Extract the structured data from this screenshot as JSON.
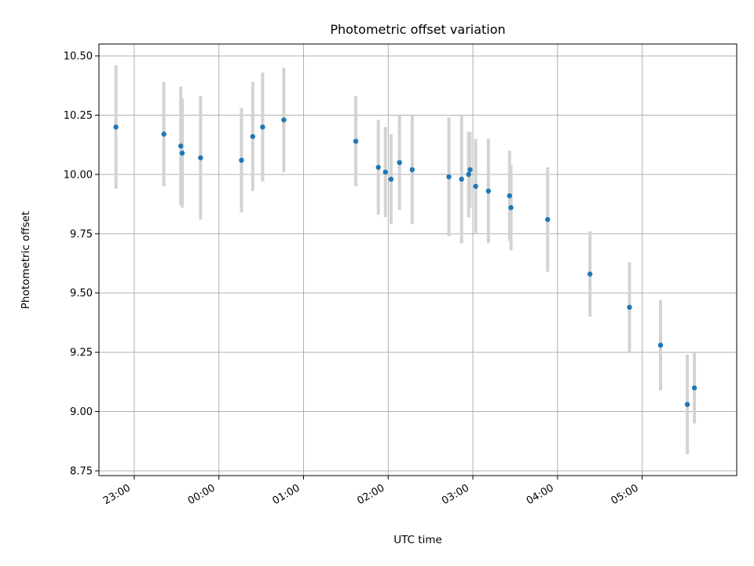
{
  "chart_data": {
    "type": "scatter",
    "title": "Photometric offset variation",
    "xlabel": "UTC time",
    "ylabel": "Photometric offset",
    "x_unit": "UTC hours (night spanning midnight)",
    "xlim": [
      "22:35",
      "06:07"
    ],
    "ylim": [
      8.73,
      10.55
    ],
    "grid": true,
    "x_ticks": [
      "23:00",
      "00:00",
      "01:00",
      "02:00",
      "03:00",
      "04:00",
      "05:00"
    ],
    "y_ticks": [
      "8.75",
      "9.00",
      "9.25",
      "9.50",
      "9.75",
      "10.00",
      "10.25",
      "10.50"
    ],
    "colors": {
      "points": "#1f77b4",
      "errorbars": "#d3d3d3",
      "grid": "#b0b0b0"
    },
    "points": [
      {
        "x": "22:47",
        "y": 10.2,
        "err": 0.26
      },
      {
        "x": "23:21",
        "y": 10.17,
        "err": 0.22
      },
      {
        "x": "23:33",
        "y": 10.12,
        "err": 0.25
      },
      {
        "x": "23:34",
        "y": 10.09,
        "err": 0.23
      },
      {
        "x": "23:47",
        "y": 10.07,
        "err": 0.26
      },
      {
        "x": "00:16",
        "y": 10.06,
        "err": 0.22
      },
      {
        "x": "00:24",
        "y": 10.16,
        "err": 0.23
      },
      {
        "x": "00:31",
        "y": 10.2,
        "err": 0.23
      },
      {
        "x": "00:46",
        "y": 10.23,
        "err": 0.22
      },
      {
        "x": "01:37",
        "y": 10.14,
        "err": 0.19
      },
      {
        "x": "01:53",
        "y": 10.03,
        "err": 0.2
      },
      {
        "x": "01:58",
        "y": 10.01,
        "err": 0.19
      },
      {
        "x": "02:02",
        "y": 9.98,
        "err": 0.19
      },
      {
        "x": "02:08",
        "y": 10.05,
        "err": 0.2
      },
      {
        "x": "02:17",
        "y": 10.02,
        "err": 0.23
      },
      {
        "x": "02:43",
        "y": 9.99,
        "err": 0.25
      },
      {
        "x": "02:52",
        "y": 9.98,
        "err": 0.27
      },
      {
        "x": "02:57",
        "y": 10.0,
        "err": 0.18
      },
      {
        "x": "02:58",
        "y": 10.02,
        "err": 0.16
      },
      {
        "x": "03:02",
        "y": 9.95,
        "err": 0.2
      },
      {
        "x": "03:11",
        "y": 9.93,
        "err": 0.22
      },
      {
        "x": "03:26",
        "y": 9.91,
        "err": 0.19
      },
      {
        "x": "03:27",
        "y": 9.86,
        "err": 0.18
      },
      {
        "x": "03:53",
        "y": 9.81,
        "err": 0.22
      },
      {
        "x": "04:23",
        "y": 9.58,
        "err": 0.18
      },
      {
        "x": "04:51",
        "y": 9.44,
        "err": 0.19
      },
      {
        "x": "05:13",
        "y": 9.28,
        "err": 0.19
      },
      {
        "x": "05:32",
        "y": 9.03,
        "err": 0.21
      },
      {
        "x": "05:37",
        "y": 9.1,
        "err": 0.15
      }
    ]
  }
}
